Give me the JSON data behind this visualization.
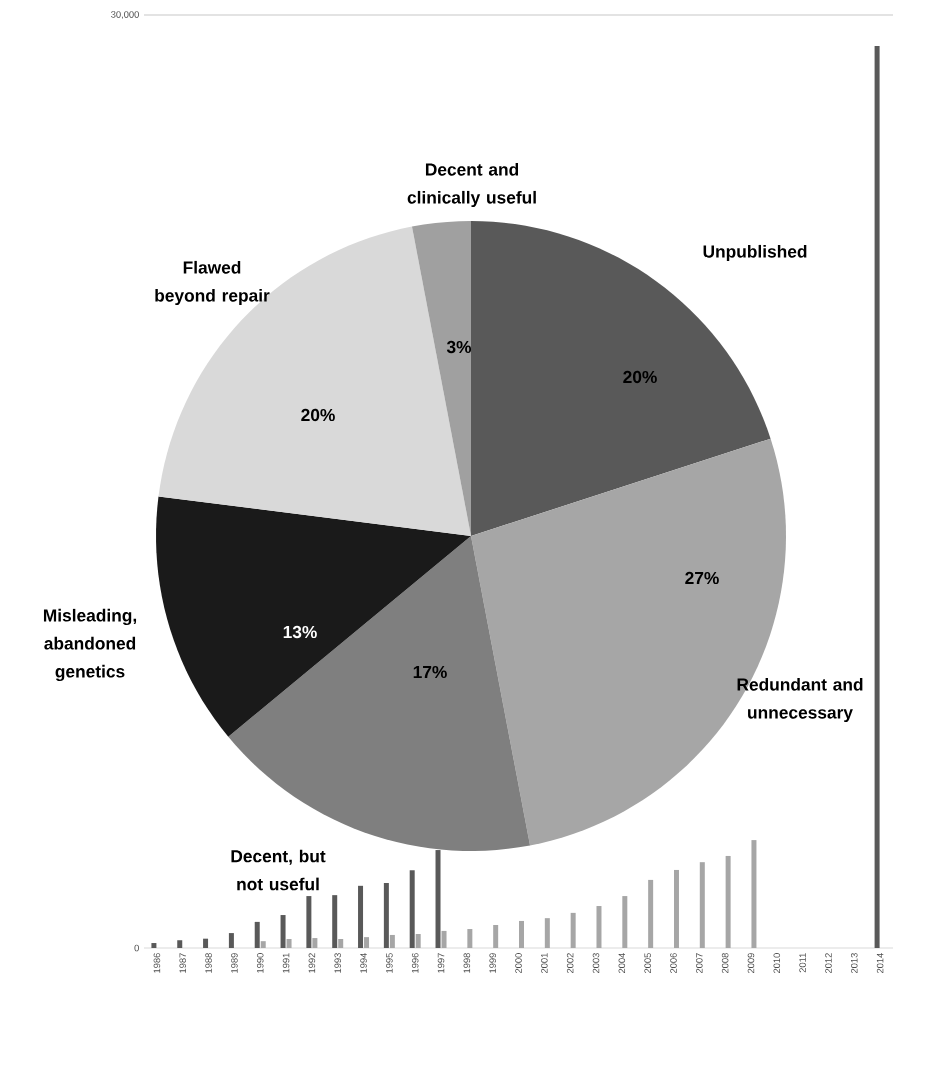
{
  "chart_data": [
    {
      "type": "bar",
      "categories": [
        "1986",
        "1987",
        "1988",
        "1989",
        "1990",
        "1991",
        "1992",
        "1993",
        "1994",
        "1995",
        "1996",
        "1997",
        "1998",
        "1999",
        "2000",
        "2001",
        "2002",
        "2003",
        "2004",
        "2005",
        "2006",
        "2007",
        "2008",
        "2009",
        "2010",
        "2011",
        "2012",
        "2013",
        "2014"
      ],
      "series": [
        {
          "color": "#595959",
          "values": [
            160,
            250,
            300,
            480,
            840,
            1060,
            1670,
            1700,
            2000,
            2090,
            2500,
            3150,
            null,
            null,
            null,
            null,
            null,
            null,
            null,
            null,
            null,
            null,
            null,
            null,
            null,
            null,
            null,
            null,
            29000
          ]
        },
        {
          "color": "#a6a6a6",
          "values": [
            null,
            null,
            null,
            null,
            220,
            290,
            320,
            290,
            350,
            420,
            450,
            550,
            610,
            740,
            870,
            960,
            1130,
            1350,
            1670,
            2190,
            2510,
            2760,
            2960,
            3470,
            null,
            null,
            null,
            null,
            null
          ]
        }
      ],
      "ylim": [
        0,
        30000
      ],
      "yticks": [
        0,
        {
          "value": 30000,
          "label": "30,000"
        }
      ],
      "grid": "y"
    },
    {
      "type": "pie",
      "categories": [
        "Unpublished",
        "Redundant and unnecessary",
        "Decent, but not useful",
        "Misleading, abandoned genetics",
        "Flawed beyond repair",
        "Decent and clinically useful"
      ],
      "values": [
        20,
        27,
        17,
        13,
        20,
        3
      ],
      "colors": [
        "#595959",
        "#a6a6a6",
        "#7f7f7f",
        "#1a1a1a",
        "#d9d9d9",
        "#a0a0a0"
      ],
      "value_labels": [
        "20%",
        "27%",
        "17%",
        "13%",
        "20%",
        "3%"
      ]
    }
  ]
}
